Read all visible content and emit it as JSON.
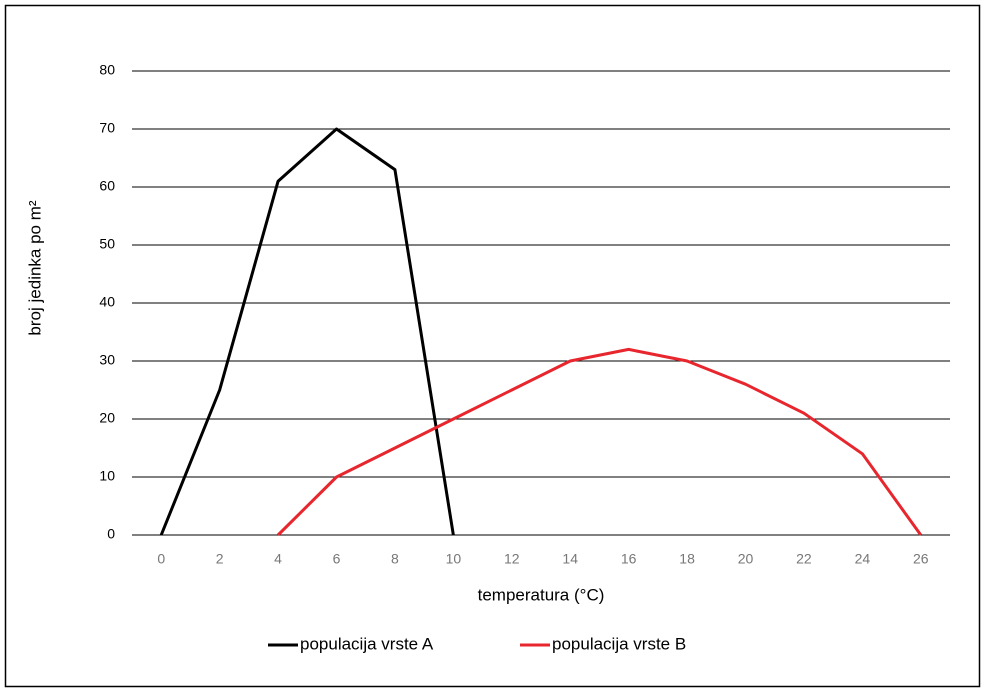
{
  "chart_data": {
    "type": "line",
    "xlabel": "temperatura (°C)",
    "ylabel": "broj jedinka po m²",
    "x": [
      0,
      2,
      4,
      6,
      8,
      10,
      12,
      14,
      16,
      18,
      20,
      22,
      24,
      26
    ],
    "xlim": [
      -1,
      27
    ],
    "xticks": [
      0,
      2,
      4,
      6,
      8,
      10,
      12,
      14,
      16,
      18,
      20,
      22,
      24,
      26
    ],
    "ylim": [
      0,
      80
    ],
    "yticks": [
      0,
      10,
      20,
      30,
      40,
      50,
      60,
      70,
      80
    ],
    "grid": true,
    "legend": "bottom",
    "series": [
      {
        "name": "populacija vrste A",
        "color": "#000000",
        "values": [
          0,
          25,
          61,
          70,
          63,
          0,
          null,
          null,
          null,
          null,
          null,
          null,
          null,
          null
        ]
      },
      {
        "name": "populacija vrste B",
        "color": "#e8262d",
        "values": [
          null,
          null,
          0,
          10,
          15,
          20,
          25,
          30,
          32,
          30,
          26,
          21,
          14,
          0
        ]
      }
    ]
  }
}
